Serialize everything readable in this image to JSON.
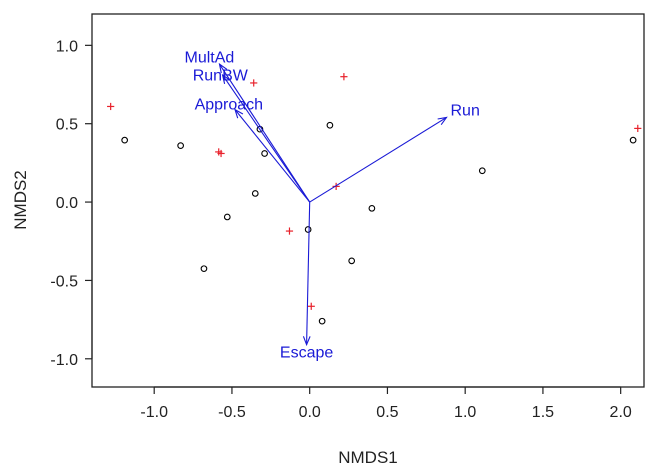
{
  "chart_data": {
    "type": "scatter",
    "title": "",
    "xlabel": "NMDS1",
    "ylabel": "NMDS2",
    "xlim": [
      -1.4,
      2.15
    ],
    "ylim": [
      -1.18,
      1.2
    ],
    "x_ticks": [
      -1.0,
      -0.5,
      0.0,
      0.5,
      1.0,
      1.5,
      2.0
    ],
    "x_tick_labels": [
      "-1.0",
      "-0.5",
      "0.0",
      "0.5",
      "1.0",
      "1.5",
      "2.0"
    ],
    "y_ticks": [
      -1.0,
      -0.5,
      0.0,
      0.5,
      1.0
    ],
    "y_tick_labels": [
      "-1.0",
      "-0.5",
      "0.0",
      "0.5",
      "1.0"
    ],
    "grid": false,
    "colors": {
      "circles": "#000000",
      "crosses": "#e8212b",
      "vectors": "#1a1ad6"
    },
    "site_points": [
      {
        "x": -1.19,
        "y": 0.395
      },
      {
        "x": -0.83,
        "y": 0.36
      },
      {
        "x": -0.32,
        "y": 0.465
      },
      {
        "x": -0.29,
        "y": 0.31
      },
      {
        "x": 0.13,
        "y": 0.49
      },
      {
        "x": -0.35,
        "y": 0.055
      },
      {
        "x": -0.53,
        "y": -0.095
      },
      {
        "x": -0.01,
        "y": -0.175
      },
      {
        "x": 0.4,
        "y": -0.04
      },
      {
        "x": 1.11,
        "y": 0.2
      },
      {
        "x": 2.08,
        "y": 0.395
      },
      {
        "x": -0.68,
        "y": -0.425
      },
      {
        "x": 0.27,
        "y": -0.375
      },
      {
        "x": 0.08,
        "y": -0.76
      }
    ],
    "species_points": [
      {
        "x": -1.28,
        "y": 0.61
      },
      {
        "x": -0.36,
        "y": 0.76
      },
      {
        "x": 0.22,
        "y": 0.8
      },
      {
        "x": -0.585,
        "y": 0.32
      },
      {
        "x": -0.57,
        "y": 0.31
      },
      {
        "x": 0.17,
        "y": 0.1
      },
      {
        "x": -0.13,
        "y": -0.185
      },
      {
        "x": 0.01,
        "y": -0.665
      },
      {
        "x": 2.11,
        "y": 0.47
      }
    ],
    "vectors": [
      {
        "label": "MultAd",
        "x": -0.58,
        "y": 0.88,
        "label_x": -0.645,
        "label_y": 0.93
      },
      {
        "label": "RunBW",
        "x": -0.56,
        "y": 0.81,
        "label_x": -0.575,
        "label_y": 0.815
      },
      {
        "label": "Approach",
        "x": -0.48,
        "y": 0.59,
        "label_x": -0.52,
        "label_y": 0.63
      },
      {
        "label": "Run",
        "x": 0.88,
        "y": 0.54,
        "label_x": 1.0,
        "label_y": 0.59
      },
      {
        "label": "Escape",
        "x": -0.02,
        "y": -0.91,
        "label_x": -0.02,
        "label_y": -0.955
      }
    ]
  }
}
